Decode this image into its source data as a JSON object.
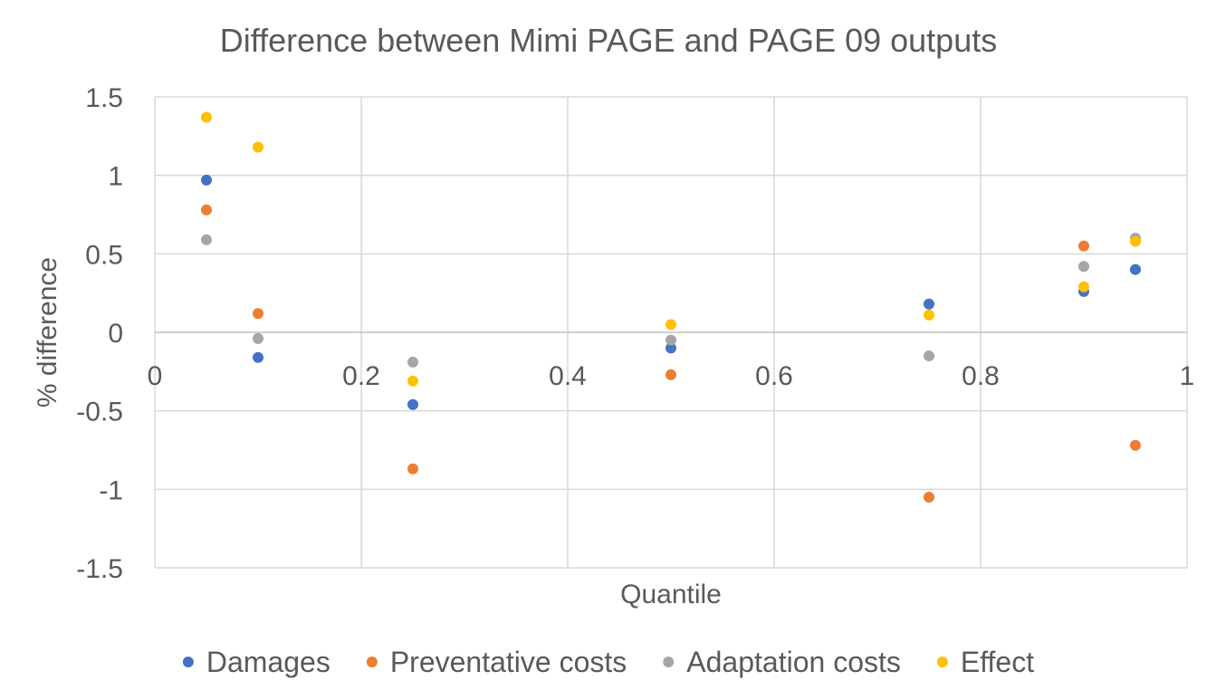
{
  "chart_data": {
    "type": "scatter",
    "title": "Difference between Mimi PAGE and PAGE 09 outputs",
    "xlabel": "Quantile",
    "ylabel": "% difference",
    "xlim": [
      0,
      1
    ],
    "ylim": [
      -1.5,
      1.5
    ],
    "xticks": [
      0,
      0.2,
      0.4,
      0.6,
      0.8,
      1
    ],
    "xtick_labels": [
      "0",
      "0.2",
      "0.4",
      "0.6",
      "0.8",
      "1"
    ],
    "yticks": [
      1.5,
      1,
      0.5,
      0,
      -0.5,
      -1,
      -1.5
    ],
    "ytick_labels": [
      "1.5",
      "1",
      "0.5",
      "0",
      "-0.5",
      "-1",
      "-1.5"
    ],
    "grid": true,
    "legend_position": "bottom",
    "series": [
      {
        "name": "Damages",
        "color": "#4472c4",
        "points": [
          [
            0.05,
            0.97
          ],
          [
            0.1,
            -0.16
          ],
          [
            0.25,
            -0.46
          ],
          [
            0.5,
            -0.1
          ],
          [
            0.75,
            0.18
          ],
          [
            0.9,
            0.26
          ],
          [
            0.95,
            0.4
          ]
        ]
      },
      {
        "name": "Preventative costs",
        "color": "#ed7d31",
        "points": [
          [
            0.05,
            0.78
          ],
          [
            0.1,
            0.12
          ],
          [
            0.25,
            -0.87
          ],
          [
            0.5,
            -0.27
          ],
          [
            0.75,
            -1.05
          ],
          [
            0.9,
            0.55
          ],
          [
            0.95,
            -0.72
          ]
        ]
      },
      {
        "name": "Adaptation costs",
        "color": "#a5a5a5",
        "points": [
          [
            0.05,
            0.59
          ],
          [
            0.1,
            -0.04
          ],
          [
            0.25,
            -0.19
          ],
          [
            0.5,
            -0.05
          ],
          [
            0.75,
            -0.15
          ],
          [
            0.9,
            0.42
          ],
          [
            0.95,
            0.6
          ]
        ]
      },
      {
        "name": "Effect",
        "color": "#ffc000",
        "points": [
          [
            0.05,
            1.37
          ],
          [
            0.1,
            1.18
          ],
          [
            0.25,
            -0.31
          ],
          [
            0.5,
            0.05
          ],
          [
            0.75,
            0.11
          ],
          [
            0.9,
            0.29
          ],
          [
            0.95,
            0.58
          ]
        ]
      }
    ]
  }
}
